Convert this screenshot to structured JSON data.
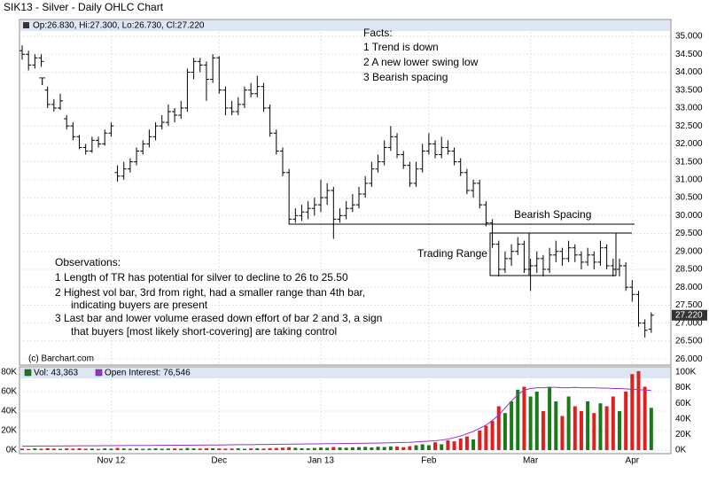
{
  "chart_data": [
    {
      "type": "ohlc",
      "title": "SIK13 - Silver - Daily OHLC Chart",
      "info": "Op:26.830, Hi:27.300, Lo:26.730, Cl:27.220",
      "color": "#000000",
      "categories": [
        null,
        null,
        null,
        null,
        null,
        null,
        null,
        null,
        null,
        null,
        null,
        null,
        null,
        null,
        "Nov 12",
        null,
        null,
        null,
        null,
        null,
        null,
        null,
        null,
        null,
        null,
        null,
        null,
        null,
        null,
        null,
        null,
        "Dec",
        null,
        null,
        null,
        null,
        null,
        null,
        null,
        null,
        null,
        null,
        null,
        null,
        null,
        null,
        null,
        "Jan 13",
        null,
        null,
        null,
        null,
        null,
        null,
        null,
        null,
        null,
        null,
        null,
        null,
        null,
        null,
        null,
        null,
        "Feb",
        null,
        null,
        null,
        null,
        null,
        null,
        null,
        null,
        null,
        null,
        null,
        null,
        null,
        null,
        null,
        "Mar",
        null,
        null,
        null,
        null,
        null,
        null,
        null,
        null,
        null,
        null,
        null,
        null,
        null,
        null,
        null,
        "Apr",
        null,
        null,
        null
      ],
      "ohlc": [
        [
          34.6,
          34.75,
          34.35,
          34.5
        ],
        [
          34.5,
          34.6,
          34.05,
          34.2
        ],
        [
          34.2,
          34.5,
          34.1,
          34.4
        ],
        [
          34.4,
          34.5,
          34.15,
          34.3
        ],
        [
          33.5,
          33.6,
          33.0,
          33.1
        ],
        [
          33.1,
          33.25,
          32.9,
          33.0
        ],
        [
          33.0,
          33.4,
          32.95,
          33.2
        ],
        [
          32.7,
          32.8,
          32.4,
          32.5
        ],
        [
          32.5,
          32.6,
          32.1,
          32.2
        ],
        [
          32.2,
          32.25,
          31.85,
          31.9
        ],
        [
          31.9,
          32.0,
          31.7,
          31.8
        ],
        [
          31.8,
          32.2,
          31.75,
          32.1
        ],
        [
          32.1,
          32.2,
          31.9,
          32.0
        ],
        [
          32.0,
          32.4,
          31.95,
          32.3
        ],
        [
          32.3,
          32.6,
          32.2,
          32.5
        ],
        [
          31.2,
          31.4,
          30.95,
          31.1
        ],
        [
          31.1,
          31.5,
          31.0,
          31.3
        ],
        [
          31.3,
          31.6,
          31.2,
          31.5
        ],
        [
          31.5,
          31.9,
          31.4,
          31.8
        ],
        [
          31.8,
          32.1,
          31.7,
          32.0
        ],
        [
          32.0,
          32.4,
          31.9,
          32.2
        ],
        [
          32.2,
          32.6,
          32.1,
          32.5
        ],
        [
          32.5,
          32.8,
          32.4,
          32.6
        ],
        [
          32.6,
          33.1,
          32.5,
          32.9
        ],
        [
          32.9,
          33.0,
          32.6,
          32.8
        ],
        [
          32.8,
          33.2,
          32.7,
          33.0
        ],
        [
          33.0,
          34.1,
          32.9,
          34.0
        ],
        [
          34.0,
          34.4,
          33.8,
          34.3
        ],
        [
          34.3,
          34.4,
          34.0,
          34.2
        ],
        [
          34.2,
          34.3,
          33.2,
          33.8
        ],
        [
          33.8,
          34.5,
          33.7,
          34.4
        ],
        [
          34.4,
          34.45,
          33.4,
          33.5
        ],
        [
          33.5,
          33.6,
          32.8,
          33.0
        ],
        [
          33.0,
          33.2,
          32.8,
          32.9
        ],
        [
          32.9,
          33.3,
          32.8,
          33.1
        ],
        [
          33.1,
          33.6,
          33.0,
          33.5
        ],
        [
          33.5,
          33.7,
          33.3,
          33.4
        ],
        [
          33.4,
          33.9,
          33.3,
          33.6
        ],
        [
          33.6,
          33.7,
          32.9,
          33.0
        ],
        [
          33.0,
          33.1,
          32.2,
          32.3
        ],
        [
          32.3,
          32.4,
          31.7,
          31.8
        ],
        [
          31.8,
          31.9,
          31.1,
          31.2
        ],
        [
          31.2,
          31.3,
          29.75,
          29.9
        ],
        [
          29.9,
          30.2,
          29.8,
          30.0
        ],
        [
          30.0,
          30.3,
          29.85,
          30.1
        ],
        [
          30.1,
          30.4,
          29.9,
          30.2
        ],
        [
          30.2,
          30.5,
          30.0,
          30.3
        ],
        [
          30.3,
          31.0,
          30.1,
          30.5
        ],
        [
          30.5,
          30.9,
          30.3,
          30.7
        ],
        [
          30.7,
          30.8,
          29.35,
          29.9
        ],
        [
          29.9,
          30.2,
          29.8,
          30.0
        ],
        [
          30.0,
          30.4,
          29.9,
          30.2
        ],
        [
          30.2,
          30.6,
          30.1,
          30.3
        ],
        [
          30.3,
          30.8,
          30.2,
          30.6
        ],
        [
          30.6,
          31.1,
          30.5,
          30.9
        ],
        [
          30.9,
          31.5,
          30.8,
          31.3
        ],
        [
          31.3,
          31.7,
          31.2,
          31.5
        ],
        [
          31.5,
          32.1,
          31.4,
          31.9
        ],
        [
          31.9,
          32.5,
          31.8,
          32.2
        ],
        [
          32.2,
          32.3,
          31.6,
          31.7
        ],
        [
          31.7,
          31.8,
          31.3,
          31.4
        ],
        [
          31.4,
          31.5,
          30.8,
          30.9
        ],
        [
          30.9,
          31.5,
          30.8,
          31.3
        ],
        [
          31.3,
          32.0,
          31.2,
          31.8
        ],
        [
          31.8,
          32.3,
          31.7,
          32.0
        ],
        [
          32.0,
          32.1,
          31.6,
          31.7
        ],
        [
          31.7,
          32.2,
          31.6,
          31.9
        ],
        [
          31.9,
          32.1,
          31.7,
          31.8
        ],
        [
          31.8,
          31.9,
          31.4,
          31.5
        ],
        [
          31.5,
          31.6,
          31.1,
          31.2
        ],
        [
          31.2,
          31.3,
          30.6,
          30.7
        ],
        [
          30.7,
          31.0,
          30.5,
          30.9
        ],
        [
          30.9,
          31.0,
          30.2,
          30.3
        ],
        [
          30.3,
          30.4,
          29.7,
          29.8
        ],
        [
          29.8,
          29.9,
          29.1,
          29.2
        ],
        [
          29.2,
          29.3,
          28.3,
          28.5
        ],
        [
          28.5,
          29.0,
          28.4,
          28.8
        ],
        [
          28.8,
          29.2,
          28.6,
          29.0
        ],
        [
          29.0,
          29.4,
          28.9,
          29.2
        ],
        [
          29.2,
          29.3,
          28.4,
          28.5
        ],
        [
          28.5,
          28.8,
          27.9,
          28.6
        ],
        [
          28.6,
          29.0,
          28.4,
          28.8
        ],
        [
          28.8,
          28.9,
          28.3,
          28.5
        ],
        [
          28.5,
          29.1,
          28.4,
          28.9
        ],
        [
          28.9,
          29.3,
          28.7,
          29.0
        ],
        [
          29.0,
          29.1,
          28.6,
          28.8
        ],
        [
          28.8,
          29.3,
          28.7,
          29.1
        ],
        [
          29.1,
          29.2,
          28.7,
          28.9
        ],
        [
          28.9,
          29.0,
          28.5,
          28.7
        ],
        [
          28.7,
          29.1,
          28.6,
          28.9
        ],
        [
          28.9,
          29.0,
          28.5,
          28.7
        ],
        [
          28.7,
          29.3,
          28.6,
          29.1
        ],
        [
          29.1,
          29.2,
          28.5,
          28.6
        ],
        [
          28.6,
          28.8,
          28.3,
          28.5
        ],
        [
          28.5,
          28.8,
          28.3,
          28.6
        ],
        [
          28.6,
          28.7,
          27.9,
          28.0
        ],
        [
          28.0,
          28.2,
          27.6,
          27.8
        ],
        [
          27.8,
          27.9,
          26.9,
          27.0
        ],
        [
          27.0,
          27.1,
          26.6,
          26.8
        ],
        [
          26.83,
          27.3,
          26.73,
          27.22
        ]
      ],
      "last_value_label": "27.220",
      "ylim": [
        25.83,
        35.47
      ],
      "yticks": [
        {
          "value": 26,
          "label": "26.000"
        },
        {
          "value": 26.5,
          "label": "26.500"
        },
        {
          "value": 27,
          "label": "27.000"
        },
        {
          "value": 27.5,
          "label": "27.500"
        },
        {
          "value": 28,
          "label": "28.000"
        },
        {
          "value": 28.5,
          "label": "28.500"
        },
        {
          "value": 29,
          "label": "29.000"
        },
        {
          "value": 29.5,
          "label": "29.500"
        },
        {
          "value": 30,
          "label": "30.000"
        },
        {
          "value": 30.5,
          "label": "30.500"
        },
        {
          "value": 31,
          "label": "31.000"
        },
        {
          "value": 31.5,
          "label": "31.500"
        },
        {
          "value": 32,
          "label": "32.000"
        },
        {
          "value": 32.5,
          "label": "32.500"
        },
        {
          "value": 33,
          "label": "33.000"
        },
        {
          "value": 33.5,
          "label": "33.500"
        },
        {
          "value": 34,
          "label": "34.000"
        },
        {
          "value": 34.5,
          "label": "34.500"
        },
        {
          "value": 35,
          "label": "35.000"
        }
      ],
      "grid": true,
      "annotations": {
        "facts": [
          "Facts:",
          "1  Trend is down",
          "2  A new lower swing low",
          "3  Bearish spacing"
        ],
        "bearish": "Bearish Spacing",
        "range": "Trading Range",
        "marker": "T",
        "credit": "(c) Barchart.com",
        "observations": [
          "Observations:",
          "1 Length of TR has potential for silver to decline to 26 to 25.50",
          "2 Highest vol bar, 3rd from right, had a smaller range than 4th bar,",
          "indicating buyers are present",
          "3 Last bar and lower volume erased down effort of bar 2 and 3, a sign",
          "that buyers [most likely short-covering] are taking control"
        ]
      }
    },
    {
      "type": "bar",
      "series": [
        {
          "name": "Vol: 43,363",
          "up_color": "#1a7a1a",
          "down_color": "#e02020",
          "color": "#1a7a1a",
          "values": [
            1500,
            1200,
            1800,
            1400,
            2000,
            1600,
            1300,
            1700,
            1500,
            1900,
            1400,
            1600,
            1200,
            1800,
            1500,
            2200,
            1700,
            1400,
            1600,
            1300,
            1500,
            1800,
            1400,
            1600,
            1700,
            1500,
            2100,
            1800,
            1600,
            1900,
            2000,
            1700,
            1500,
            1600,
            1800,
            1400,
            1700,
            1900,
            1600,
            2000,
            2200,
            2500,
            3000,
            2400,
            2000,
            1800,
            2200,
            2600,
            2400,
            3200,
            2800,
            2500,
            2900,
            3100,
            3300,
            2800,
            3500,
            3200,
            3800,
            3600,
            3000,
            4000,
            5000,
            6000,
            5000,
            8000,
            6000,
            10000,
            9000,
            12000,
            14000,
            11000,
            20000,
            25000,
            30000,
            45000,
            38000,
            50000,
            62000,
            65000,
            55000,
            60000,
            40000,
            65000,
            50000,
            35000,
            55000,
            45000,
            40000,
            50000,
            38000,
            48000,
            45000,
            55000,
            40000,
            60000,
            78000,
            81000,
            65000,
            43363
          ]
        },
        {
          "name": "Open Interest: 76,546",
          "type": "line",
          "axis": "y2",
          "color": "#9933cc",
          "values": [
            5000,
            5100,
            5100,
            5200,
            5200,
            5300,
            5300,
            5400,
            5400,
            5500,
            5500,
            5600,
            5600,
            5700,
            5700,
            5800,
            5800,
            5900,
            5900,
            6000,
            6000,
            6100,
            6100,
            6200,
            6200,
            6300,
            6300,
            6400,
            6400,
            6500,
            6500,
            6600,
            6700,
            6800,
            6900,
            7000,
            7000,
            7100,
            7200,
            7300,
            7400,
            7500,
            7600,
            7700,
            7800,
            7900,
            8000,
            8100,
            8200,
            8300,
            8400,
            8500,
            8600,
            8700,
            8800,
            8900,
            9000,
            9200,
            9400,
            9600,
            9800,
            10000,
            10500,
            11000,
            11500,
            12000,
            13000,
            14000,
            16000,
            18000,
            21000,
            24000,
            28000,
            32000,
            38000,
            45000,
            54000,
            63000,
            71000,
            77000,
            79000,
            80000,
            80000,
            80500,
            80500,
            80000,
            80000,
            80500,
            80000,
            80000,
            80000,
            79500,
            79500,
            79000,
            79000,
            78500,
            78000,
            77500,
            77000,
            76546
          ]
        }
      ],
      "ylim": [
        0,
        80000
      ],
      "yticks": [
        {
          "value": 0,
          "label": "0K"
        },
        {
          "value": 20000,
          "label": "20K"
        },
        {
          "value": 40000,
          "label": "40K"
        },
        {
          "value": 60000,
          "label": "60K"
        },
        {
          "value": 80000,
          "label": "80K"
        }
      ],
      "y2lim": [
        0,
        100000
      ],
      "y2ticks": [
        {
          "value": 0,
          "label": "0K"
        },
        {
          "value": 20000,
          "label": "20K"
        },
        {
          "value": 40000,
          "label": "40K"
        },
        {
          "value": 60000,
          "label": "60K"
        },
        {
          "value": 80000,
          "label": "80K"
        },
        {
          "value": 100000,
          "label": "100K"
        }
      ],
      "grid": true
    }
  ]
}
